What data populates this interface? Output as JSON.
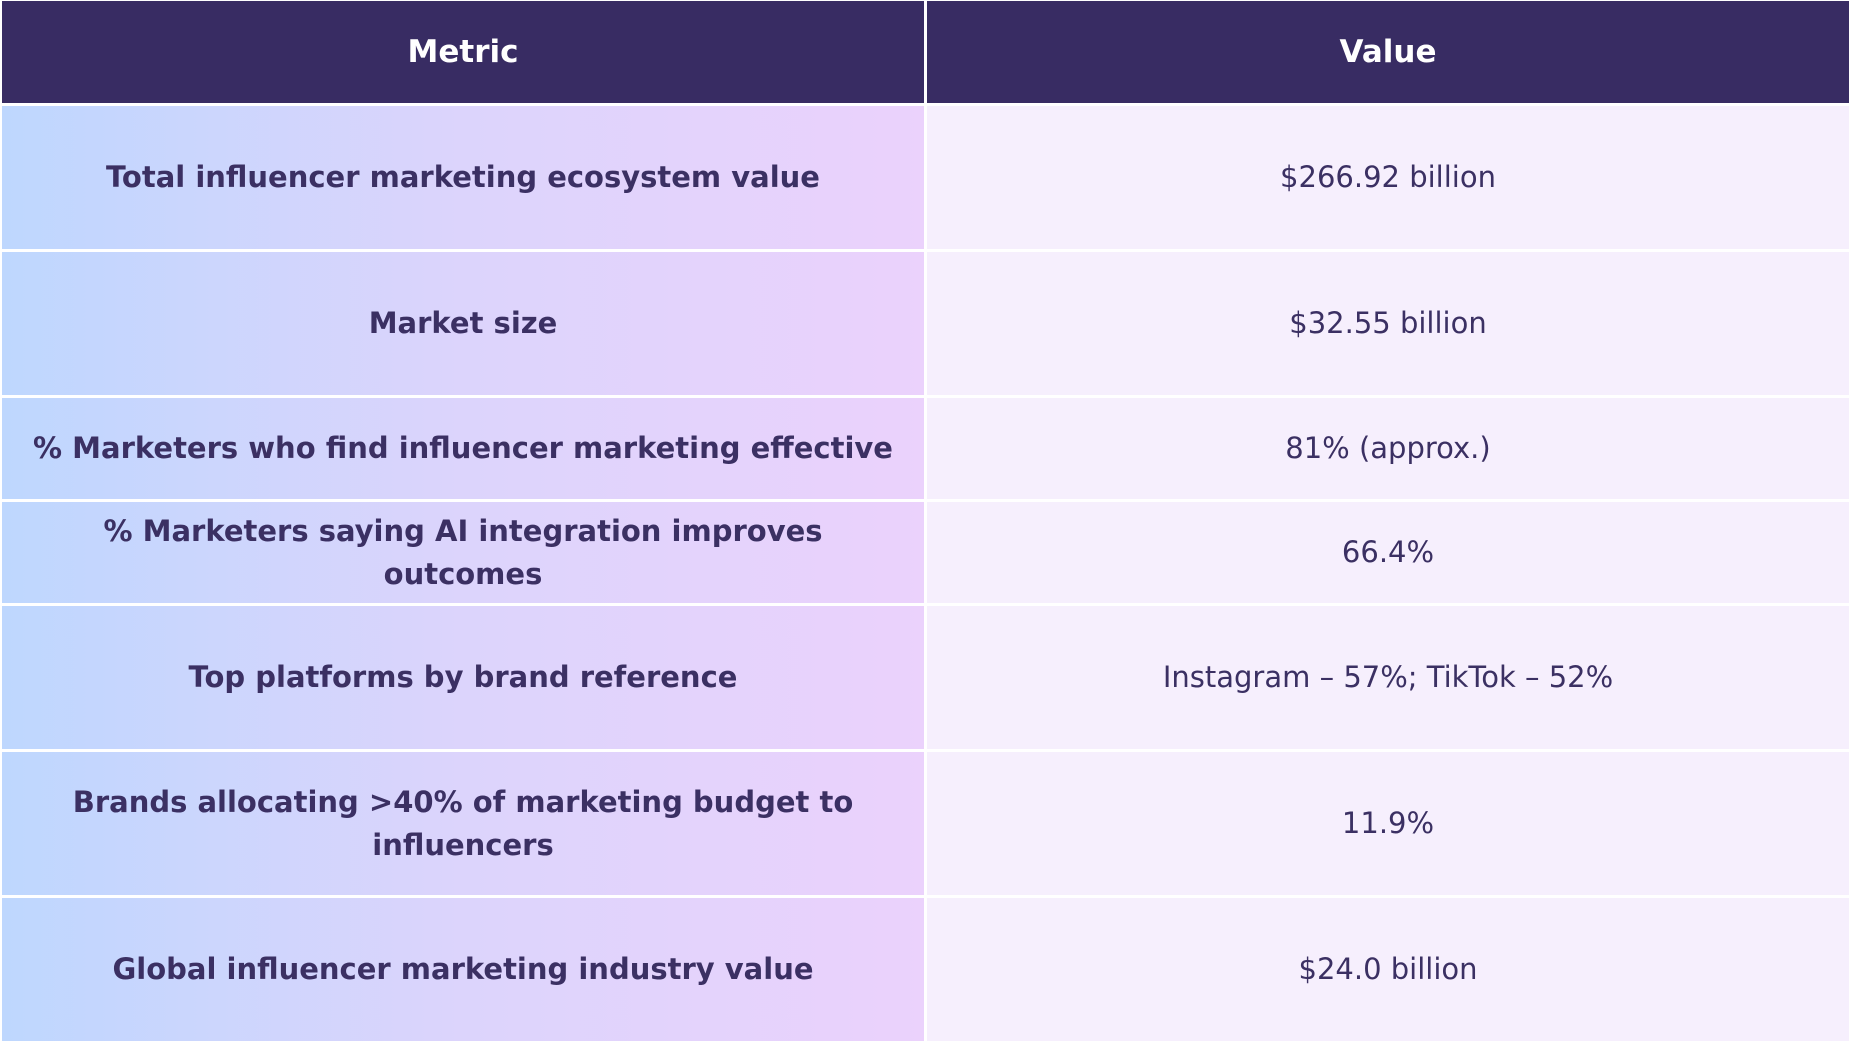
{
  "header": {
    "columns": [
      "Metric",
      "Value"
    ]
  },
  "table": {
    "rows": [
      [
        "Total influencer marketing ecosystem value",
        "$266.92 billion"
      ],
      [
        "Market size",
        "$32.55 billion"
      ],
      [
        "% Marketers who find influencer marketing effective",
        "81% (approx.)"
      ],
      [
        "% Marketers saying AI integration improves outcomes",
        "66.4%"
      ],
      [
        "Top platforms by brand reference",
        "Instagram – 57%; TikTok – 52%"
      ],
      [
        "Brands allocating >40% of marketing budget to influencers",
        "11.9%"
      ],
      [
        "Global influencer marketing industry value",
        "$24.0 billion"
      ]
    ]
  }
}
